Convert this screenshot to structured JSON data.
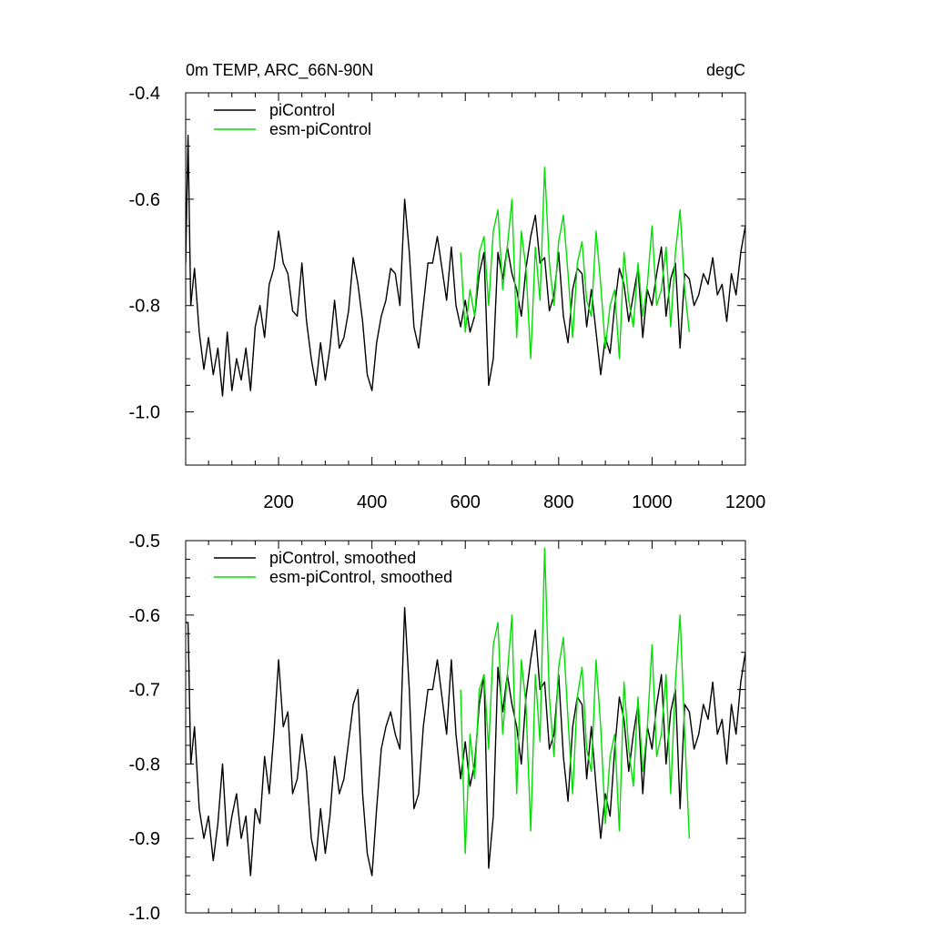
{
  "chart_data": [
    {
      "type": "line",
      "title": "0m TEMP, ARC_66N-90N",
      "units": "degC",
      "xlim": [
        1,
        1200
      ],
      "ylim": [
        -1.1,
        -0.4
      ],
      "xticks": [
        200,
        400,
        600,
        800,
        1000,
        1200
      ],
      "xtick_labels": [
        "200",
        "400",
        "600",
        "800",
        "1000",
        "1200"
      ],
      "yticks": [
        -1.0,
        -0.8,
        -0.6,
        -0.4
      ],
      "ytick_labels": [
        "-1.0",
        "-0.8",
        "-0.6",
        "-0.4"
      ],
      "legend_position": "top-left",
      "grid": false,
      "series": [
        {
          "name": "piControl",
          "color": "#000000",
          "x": [
            1,
            6,
            12,
            20,
            30,
            40,
            50,
            60,
            70,
            80,
            90,
            100,
            110,
            120,
            130,
            140,
            150,
            160,
            170,
            180,
            190,
            200,
            210,
            220,
            230,
            240,
            250,
            260,
            270,
            280,
            290,
            300,
            310,
            320,
            330,
            340,
            350,
            360,
            370,
            380,
            390,
            400,
            410,
            420,
            430,
            440,
            450,
            460,
            470,
            480,
            490,
            500,
            510,
            520,
            530,
            540,
            550,
            560,
            570,
            580,
            590,
            600,
            610,
            620,
            630,
            640,
            650,
            660,
            670,
            680,
            690,
            700,
            710,
            720,
            730,
            740,
            750,
            760,
            770,
            780,
            790,
            800,
            810,
            820,
            830,
            840,
            850,
            860,
            870,
            880,
            890,
            900,
            910,
            920,
            930,
            940,
            950,
            960,
            970,
            980,
            990,
            1000,
            1010,
            1020,
            1030,
            1040,
            1050,
            1060,
            1070,
            1080,
            1090,
            1100,
            1110,
            1120,
            1130,
            1140,
            1150,
            1160,
            1170,
            1180,
            1190,
            1200
          ],
          "y": [
            -0.72,
            -0.48,
            -0.8,
            -0.73,
            -0.85,
            -0.92,
            -0.86,
            -0.93,
            -0.88,
            -0.97,
            -0.85,
            -0.96,
            -0.9,
            -0.94,
            -0.88,
            -0.96,
            -0.84,
            -0.8,
            -0.86,
            -0.76,
            -0.73,
            -0.66,
            -0.72,
            -0.74,
            -0.81,
            -0.82,
            -0.72,
            -0.83,
            -0.9,
            -0.95,
            -0.87,
            -0.94,
            -0.88,
            -0.79,
            -0.88,
            -0.86,
            -0.81,
            -0.71,
            -0.76,
            -0.83,
            -0.93,
            -0.96,
            -0.87,
            -0.82,
            -0.79,
            -0.73,
            -0.74,
            -0.8,
            -0.6,
            -0.7,
            -0.84,
            -0.88,
            -0.8,
            -0.72,
            -0.72,
            -0.67,
            -0.73,
            -0.79,
            -0.69,
            -0.8,
            -0.84,
            -0.79,
            -0.85,
            -0.82,
            -0.74,
            -0.7,
            -0.95,
            -0.9,
            -0.7,
            -0.75,
            -0.69,
            -0.74,
            -0.77,
            -0.82,
            -0.73,
            -0.67,
            -0.63,
            -0.72,
            -0.71,
            -0.81,
            -0.78,
            -0.7,
            -0.82,
            -0.87,
            -0.77,
            -0.73,
            -0.74,
            -0.84,
            -0.77,
            -0.85,
            -0.93,
            -0.86,
            -0.89,
            -0.8,
            -0.73,
            -0.76,
            -0.83,
            -0.78,
            -0.73,
            -0.86,
            -0.77,
            -0.8,
            -0.74,
            -0.69,
            -0.82,
            -0.75,
            -0.72,
            -0.88,
            -0.74,
            -0.75,
            -0.8,
            -0.78,
            -0.74,
            -0.76,
            -0.71,
            -0.78,
            -0.76,
            -0.83,
            -0.74,
            -0.78,
            -0.7,
            -0.65
          ]
        },
        {
          "name": "esm-piControl",
          "color": "#00e000",
          "x": [
            590,
            600,
            610,
            620,
            630,
            640,
            650,
            660,
            670,
            680,
            690,
            700,
            710,
            720,
            730,
            740,
            750,
            760,
            770,
            780,
            790,
            800,
            810,
            820,
            830,
            840,
            850,
            860,
            870,
            880,
            890,
            900,
            910,
            920,
            930,
            940,
            950,
            960,
            970,
            980,
            990,
            1000,
            1010,
            1020,
            1030,
            1040,
            1050,
            1060,
            1070,
            1080
          ],
          "y": [
            -0.7,
            -0.85,
            -0.77,
            -0.82,
            -0.7,
            -0.67,
            -0.8,
            -0.66,
            -0.62,
            -0.77,
            -0.69,
            -0.6,
            -0.86,
            -0.66,
            -0.73,
            -0.9,
            -0.69,
            -0.79,
            -0.54,
            -0.72,
            -0.8,
            -0.68,
            -0.63,
            -0.74,
            -0.86,
            -0.72,
            -0.68,
            -0.79,
            -0.82,
            -0.66,
            -0.76,
            -0.88,
            -0.8,
            -0.77,
            -0.9,
            -0.7,
            -0.79,
            -0.84,
            -0.72,
            -0.82,
            -0.76,
            -0.65,
            -0.8,
            -0.77,
            -0.69,
            -0.84,
            -0.7,
            -0.62,
            -0.77,
            -0.85
          ]
        }
      ]
    },
    {
      "type": "line",
      "title": "",
      "xlim": [
        1,
        1200
      ],
      "ylim": [
        -1.0,
        -0.5
      ],
      "yticks": [
        -1.0,
        -0.9,
        -0.8,
        -0.7,
        -0.6,
        -0.5
      ],
      "ytick_labels": [
        "-1.0",
        "-0.9",
        "-0.8",
        "-0.7",
        "-0.6",
        "-0.5"
      ],
      "legend_position": "top-left",
      "grid": false,
      "series": [
        {
          "name": "piControl, smoothed",
          "color": "#000000",
          "x": [
            1,
            6,
            12,
            20,
            30,
            40,
            50,
            60,
            70,
            80,
            90,
            100,
            110,
            120,
            130,
            140,
            150,
            160,
            170,
            180,
            190,
            200,
            210,
            220,
            230,
            240,
            250,
            260,
            270,
            280,
            290,
            300,
            310,
            320,
            330,
            340,
            350,
            360,
            370,
            380,
            390,
            400,
            410,
            420,
            430,
            440,
            450,
            460,
            470,
            480,
            490,
            500,
            510,
            520,
            530,
            540,
            550,
            560,
            570,
            580,
            590,
            600,
            610,
            620,
            630,
            640,
            650,
            660,
            670,
            680,
            690,
            700,
            710,
            720,
            730,
            740,
            750,
            760,
            770,
            780,
            790,
            800,
            810,
            820,
            830,
            840,
            850,
            860,
            870,
            880,
            890,
            900,
            910,
            920,
            930,
            940,
            950,
            960,
            970,
            980,
            990,
            1000,
            1010,
            1020,
            1030,
            1040,
            1050,
            1060,
            1070,
            1080,
            1090,
            1100,
            1110,
            1120,
            1130,
            1140,
            1150,
            1160,
            1170,
            1180,
            1190,
            1200
          ],
          "y": [
            -0.61,
            -0.61,
            -0.8,
            -0.75,
            -0.86,
            -0.9,
            -0.87,
            -0.93,
            -0.88,
            -0.8,
            -0.91,
            -0.87,
            -0.84,
            -0.9,
            -0.87,
            -0.95,
            -0.86,
            -0.88,
            -0.79,
            -0.84,
            -0.76,
            -0.66,
            -0.75,
            -0.73,
            -0.84,
            -0.82,
            -0.76,
            -0.81,
            -0.9,
            -0.93,
            -0.86,
            -0.92,
            -0.87,
            -0.79,
            -0.84,
            -0.82,
            -0.77,
            -0.72,
            -0.7,
            -0.84,
            -0.92,
            -0.95,
            -0.86,
            -0.78,
            -0.75,
            -0.73,
            -0.76,
            -0.78,
            -0.59,
            -0.7,
            -0.86,
            -0.84,
            -0.75,
            -0.7,
            -0.7,
            -0.66,
            -0.71,
            -0.76,
            -0.66,
            -0.76,
            -0.82,
            -0.77,
            -0.83,
            -0.8,
            -0.72,
            -0.68,
            -0.94,
            -0.87,
            -0.67,
            -0.73,
            -0.68,
            -0.72,
            -0.75,
            -0.8,
            -0.71,
            -0.66,
            -0.62,
            -0.7,
            -0.69,
            -0.78,
            -0.76,
            -0.68,
            -0.79,
            -0.85,
            -0.75,
            -0.71,
            -0.72,
            -0.82,
            -0.75,
            -0.83,
            -0.9,
            -0.84,
            -0.87,
            -0.78,
            -0.71,
            -0.74,
            -0.81,
            -0.76,
            -0.72,
            -0.84,
            -0.75,
            -0.78,
            -0.72,
            -0.68,
            -0.8,
            -0.73,
            -0.7,
            -0.86,
            -0.72,
            -0.73,
            -0.78,
            -0.76,
            -0.72,
            -0.74,
            -0.69,
            -0.76,
            -0.74,
            -0.8,
            -0.72,
            -0.76,
            -0.69,
            -0.65
          ]
        },
        {
          "name": "esm-piControl, smoothed",
          "color": "#00e000",
          "x": [
            590,
            600,
            610,
            620,
            630,
            640,
            650,
            660,
            670,
            680,
            690,
            700,
            710,
            720,
            730,
            740,
            750,
            760,
            770,
            780,
            790,
            800,
            810,
            820,
            830,
            840,
            850,
            860,
            870,
            880,
            890,
            900,
            910,
            920,
            930,
            940,
            950,
            960,
            970,
            980,
            990,
            1000,
            1010,
            1020,
            1030,
            1040,
            1050,
            1060,
            1070,
            1080
          ],
          "y": [
            -0.7,
            -0.92,
            -0.76,
            -0.82,
            -0.7,
            -0.68,
            -0.78,
            -0.64,
            -0.61,
            -0.76,
            -0.68,
            -0.6,
            -0.84,
            -0.66,
            -0.72,
            -0.89,
            -0.68,
            -0.77,
            -0.51,
            -0.71,
            -0.79,
            -0.67,
            -0.63,
            -0.74,
            -0.84,
            -0.71,
            -0.67,
            -0.78,
            -0.81,
            -0.66,
            -0.75,
            -0.88,
            -0.79,
            -0.76,
            -0.89,
            -0.69,
            -0.78,
            -0.83,
            -0.71,
            -0.81,
            -0.75,
            -0.64,
            -0.79,
            -0.76,
            -0.68,
            -0.84,
            -0.69,
            -0.6,
            -0.76,
            -0.9
          ]
        }
      ]
    }
  ]
}
